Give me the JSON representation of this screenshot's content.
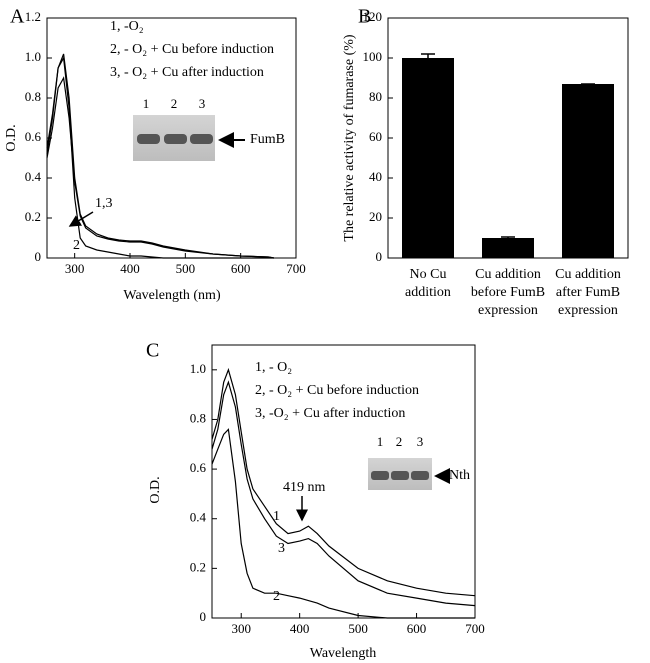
{
  "chart_data": [
    {
      "type": "line",
      "label": "A",
      "xlabel": "Wavelength (nm)",
      "ylabel": "O.D.",
      "xlim": [
        250,
        700
      ],
      "xticks": [
        300,
        400,
        500,
        600,
        700
      ],
      "ylim": [
        0,
        1.2
      ],
      "yticks": [
        0,
        0.2,
        0.4,
        0.6,
        0.8,
        {
          "value": 1,
          "label": "1.0"
        },
        1.2
      ],
      "x": [
        250,
        260,
        270,
        280,
        290,
        300,
        310,
        320,
        340,
        360,
        380,
        400,
        420,
        440,
        460,
        500,
        550,
        600,
        650,
        660
      ],
      "series": [
        {
          "name": "1,   -O₂",
          "color": "#000000",
          "values": [
            0.52,
            0.7,
            0.95,
            1.02,
            0.8,
            0.4,
            0.22,
            0.16,
            0.12,
            0.1,
            0.09,
            0.085,
            0.085,
            0.075,
            0.06,
            0.04,
            0.02,
            0.01,
            0.005,
            0
          ]
        },
        {
          "name": "2,  - O₂ + Cu before induction",
          "color": "#000000",
          "values": [
            0.55,
            0.72,
            0.95,
            1.0,
            0.75,
            0.3,
            0.1,
            0.06,
            0.04,
            0.03,
            0.02,
            0.01,
            0.01,
            0.005,
            0,
            0,
            0,
            0,
            0,
            0
          ]
        },
        {
          "name": "3,  - O₂  + Cu after induction",
          "color": "#000000",
          "values": [
            0.5,
            0.65,
            0.85,
            0.9,
            0.7,
            0.38,
            0.21,
            0.15,
            0.11,
            0.095,
            0.085,
            0.08,
            0.08,
            0.07,
            0.055,
            0.035,
            0.02,
            0.01,
            0.005,
            0
          ]
        }
      ],
      "annotations": [
        "1,3",
        "2"
      ],
      "inset": {
        "lanes": [
          "1",
          "2",
          "3"
        ],
        "label": "FumB"
      }
    },
    {
      "type": "bar",
      "label": "B",
      "ylabel": "The relative activity of fumarase (%)",
      "categories": [
        "No Cu\naddition",
        "Cu addition\nbefore FumB\nexpression",
        "Cu addition\nafter FumB\nexpression"
      ],
      "values": [
        100,
        10,
        87
      ],
      "errors": [
        2,
        0.5,
        0
      ],
      "color": "#000000",
      "ylim": [
        0,
        120
      ],
      "yticks": [
        0,
        20,
        40,
        60,
        80,
        100,
        120
      ]
    },
    {
      "type": "line",
      "label": "C",
      "xlabel": "Wavelength",
      "ylabel": "O.D.",
      "xlim": [
        250,
        700
      ],
      "xticks": [
        300,
        400,
        500,
        600,
        700
      ],
      "ylim": [
        0,
        1.1
      ],
      "yticks": [
        0,
        0.2,
        0.4,
        0.6,
        0.8,
        {
          "value": 1,
          "label": "1.0"
        }
      ],
      "x": [
        250,
        260,
        270,
        278,
        290,
        300,
        310,
        320,
        340,
        360,
        380,
        400,
        415,
        430,
        450,
        500,
        550,
        600,
        650,
        700
      ],
      "series": [
        {
          "name": "1,   - O₂",
          "color": "#000000",
          "values": [
            0.72,
            0.8,
            0.95,
            1.0,
            0.9,
            0.75,
            0.6,
            0.52,
            0.45,
            0.38,
            0.34,
            0.35,
            0.37,
            0.34,
            0.29,
            0.2,
            0.15,
            0.12,
            0.1,
            0.09
          ]
        },
        {
          "name": "2,   - O₂ + Cu  before induction",
          "color": "#000000",
          "values": [
            0.62,
            0.68,
            0.74,
            0.76,
            0.55,
            0.3,
            0.18,
            0.12,
            0.1,
            0.1,
            0.09,
            0.08,
            0.07,
            0.06,
            0.04,
            0.01,
            0,
            0,
            0,
            0
          ]
        },
        {
          "name": "3,   -O₂ + Cu after induction",
          "color": "#000000",
          "values": [
            0.68,
            0.76,
            0.9,
            0.95,
            0.85,
            0.7,
            0.56,
            0.48,
            0.4,
            0.33,
            0.3,
            0.31,
            0.32,
            0.3,
            0.25,
            0.15,
            0.1,
            0.08,
            0.06,
            0.05
          ]
        }
      ],
      "annotations": [
        "419 nm",
        "1",
        "3",
        "2"
      ],
      "inset": {
        "lanes": [
          "1",
          "2",
          "3"
        ],
        "label": "Nth"
      }
    }
  ]
}
